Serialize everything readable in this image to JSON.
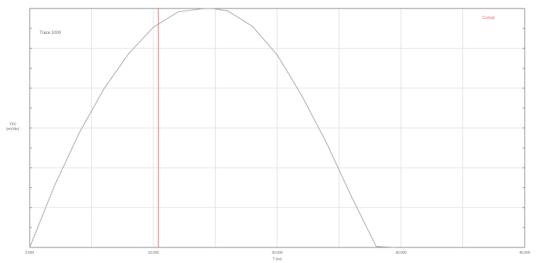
{
  "chart_data": {
    "type": "line",
    "title": "",
    "trace_label": "Trace 1000",
    "cursor_label": "Cursor",
    "xlabel": "T (ns)",
    "ylabel": "V(n)",
    "ylabel_secondary": "(mV/div)",
    "xlim": [
      0,
      1
    ],
    "ylim": [
      0,
      1
    ],
    "x_tick_labels": [
      "0.000",
      "",
      "10.000",
      "",
      "20.000",
      "",
      "30.000",
      "",
      "40.000"
    ],
    "grid": true,
    "cursor_x": 0.26,
    "series": [
      {
        "x": [
          0.0,
          0.05,
          0.1,
          0.15,
          0.2,
          0.25,
          0.3,
          0.35,
          0.3688,
          0.4,
          0.45,
          0.5,
          0.55,
          0.6,
          0.65,
          0.7,
          0.7375
        ],
        "y": [
          0.0,
          0.258,
          0.479,
          0.664,
          0.811,
          0.922,
          0.986,
          0.999,
          1.0,
          0.99,
          0.925,
          0.806,
          0.634,
          0.436,
          0.213,
          0.004,
          0.0
        ]
      }
    ],
    "colors": {
      "curve": "#b0b0b0",
      "cursor": "#e46060",
      "grid": "#e2e2e2",
      "axes": "#8a8a8a",
      "text": "#666666"
    }
  }
}
